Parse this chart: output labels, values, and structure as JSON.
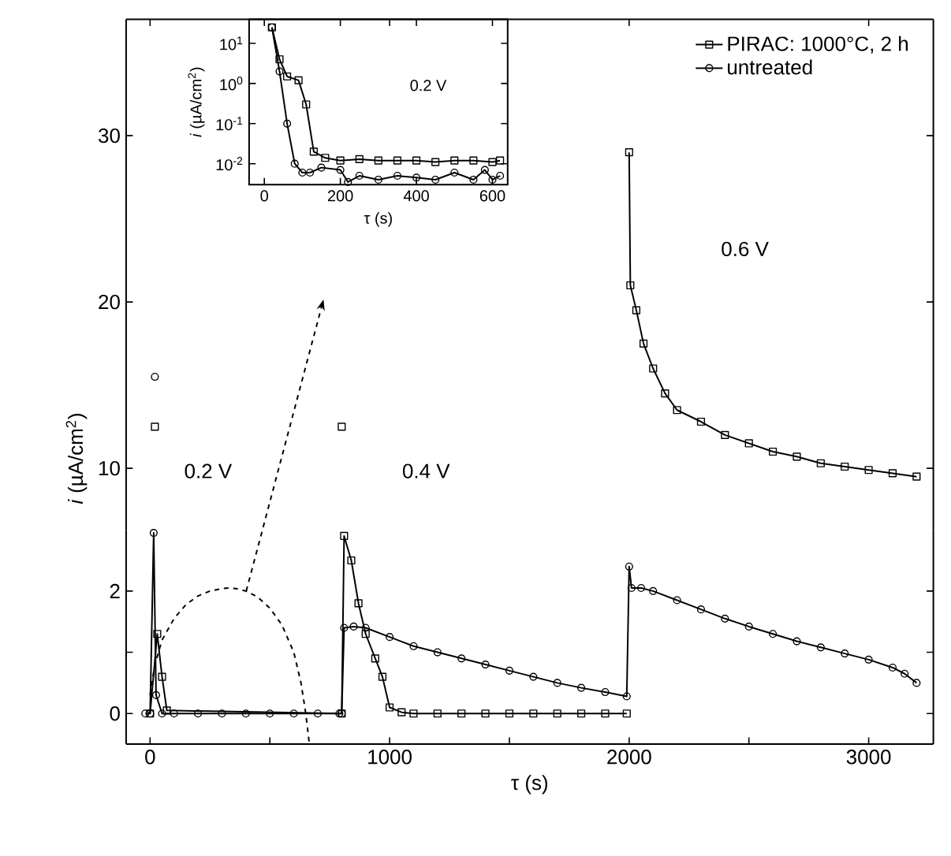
{
  "chart_data": [
    {
      "type": "line",
      "ylabel": "*i* (µA/cm$^{2}$)",
      "xlim": [
        -100,
        3270
      ],
      "ylim": [
        6.3,
        37
      ],
      "xticks": [
        0,
        1000,
        2000,
        3000
      ],
      "yticks": [
        10,
        20,
        30
      ],
      "tick_labels": "y",
      "legend": "top right",
      "annotations": [
        "0.2 V",
        "0.4 V",
        "0.6 V"
      ],
      "series": [
        {
          "name": "PIRAC: 1000°C, 2 h",
          "color": "#000000",
          "marker": "square",
          "x": [
            20,
            400,
            800,
            1400,
            2000,
            2005,
            2030,
            2060,
            2100,
            2150,
            2200,
            2300,
            2400,
            2500,
            2600,
            2700,
            2800,
            2900,
            3000,
            3100,
            3200
          ],
          "values": [
            12.5,
            null,
            12.5,
            null,
            29,
            21,
            19.5,
            17.5,
            16,
            14.5,
            13.5,
            12.8,
            12,
            11.5,
            11,
            10.7,
            10.3,
            10.1,
            9.9,
            9.7,
            9.5
          ]
        },
        {
          "name": "untreated",
          "color": "#000000",
          "marker": "circle",
          "x": [
            20
          ],
          "values": [
            15.5
          ]
        }
      ]
    },
    {
      "type": "line",
      "xlabel": "τ (s)",
      "xlim": [
        -100,
        3270
      ],
      "ylim": [
        -0.5,
        3
      ],
      "xticks": [
        0,
        {
          "value": 500,
          "label": null
        },
        1000,
        {
          "value": 1500,
          "label": null
        },
        2000,
        {
          "value": 2500,
          "label": null
        },
        3000
      ],
      "yticks": [
        0,
        {
          "value": 1,
          "label": null
        },
        2
      ],
      "series": [
        {
          "color": "#000000",
          "marker": "square",
          "x": [
            0,
            30,
            50,
            70,
            800,
            810,
            840,
            870,
            900,
            940,
            970,
            1000,
            1050,
            1100,
            1200,
            1300,
            1400,
            1500,
            1600,
            1700,
            1800,
            1900,
            1990
          ],
          "values": [
            0,
            1.3,
            0.6,
            0.05,
            0,
            2.9,
            2.5,
            1.8,
            1.3,
            0.9,
            0.6,
            0.1,
            0.02,
            0,
            0,
            0,
            0,
            0,
            0,
            0,
            0,
            0,
            0
          ]
        },
        {
          "color": "#000000",
          "marker": "circle",
          "x": [
            -20,
            0,
            15,
            25,
            50,
            100,
            200,
            300,
            400,
            500,
            600,
            700,
            790,
            800,
            810,
            850,
            900,
            1000,
            1100,
            1200,
            1300,
            1400,
            1500,
            1600,
            1700,
            1800,
            1900,
            1990,
            2000,
            2010,
            2050,
            2100,
            2200,
            2300,
            2400,
            2500,
            2600,
            2700,
            2800,
            2900,
            3000,
            3100,
            3150,
            3200
          ],
          "values": [
            0,
            0,
            2.95,
            0.3,
            0,
            0,
            0,
            0,
            0,
            0,
            0,
            0,
            0,
            0,
            1.4,
            1.42,
            1.4,
            1.25,
            1.1,
            1.0,
            0.9,
            0.8,
            0.7,
            0.6,
            0.5,
            0.42,
            0.35,
            0.28,
            2.4,
            2.05,
            2.05,
            2.0,
            1.85,
            1.7,
            1.55,
            1.42,
            1.3,
            1.18,
            1.08,
            0.98,
            0.88,
            0.75,
            0.65,
            0.5
          ]
        },
        {
          "color": "#000000",
          "marker": "none",
          "line_style": "dashed",
          "x": [
            0,
            20,
            50,
            100,
            150,
            200,
            250,
            300,
            330,
            360,
            400,
            450,
            500,
            550,
            600,
            630,
            650,
            665
          ],
          "values": [
            0.3,
            0.8,
            1.2,
            1.55,
            1.78,
            1.92,
            2.0,
            2.04,
            2.05,
            2.04,
            2.0,
            1.9,
            1.72,
            1.45,
            1.0,
            0.5,
            0.0,
            -0.5
          ]
        }
      ]
    },
    {
      "type": "line",
      "log": "y",
      "xlabel": "τ (s)",
      "ylabel": "*i* (µA/cm$^{2}$)",
      "xlim": [
        -40,
        640
      ],
      "ylim": [
        0.003,
        40
      ],
      "xticks": [
        0,
        200,
        400,
        600
      ],
      "yticks": [
        {
          "value": 10,
          "label": "10$^{1}$"
        },
        {
          "value": 1,
          "label": "10$^{0}$"
        },
        {
          "value": 0.1,
          "label": "10$^{-1}$"
        },
        {
          "value": 0.01,
          "label": "10$^{-2}$"
        }
      ],
      "annotations": [
        "0.2 V"
      ],
      "series": [
        {
          "color": "#000000",
          "marker": "square",
          "x": [
            20,
            40,
            60,
            90,
            110,
            130,
            160,
            200,
            250,
            300,
            350,
            400,
            450,
            500,
            550,
            600,
            620
          ],
          "values": [
            25,
            4,
            1.5,
            1.2,
            0.3,
            0.02,
            0.014,
            0.012,
            0.013,
            0.012,
            0.012,
            0.012,
            0.011,
            0.012,
            0.012,
            0.011,
            0.012
          ]
        },
        {
          "color": "#000000",
          "marker": "circle",
          "x": [
            20,
            40,
            60,
            80,
            100,
            120,
            150,
            200,
            220,
            250,
            300,
            350,
            400,
            450,
            500,
            550,
            580,
            600,
            620
          ],
          "values": [
            25,
            2,
            0.1,
            0.01,
            0.006,
            0.006,
            0.008,
            0.007,
            0.0035,
            0.005,
            0.004,
            0.005,
            0.0045,
            0.004,
            0.006,
            0.004,
            0.007,
            0.004,
            0.005
          ]
        }
      ]
    }
  ]
}
